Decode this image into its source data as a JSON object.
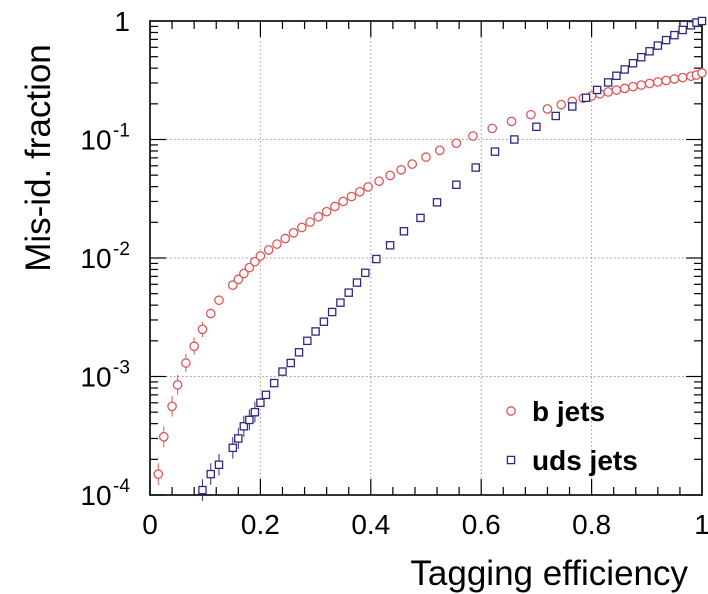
{
  "chart_data": {
    "type": "scatter",
    "title": "",
    "xlabel": "Tagging efficiency",
    "ylabel": "Mis-id. fraction",
    "xlim": [
      0,
      1
    ],
    "ylim": [
      0.0001,
      1
    ],
    "y_scale": "log",
    "grid": true,
    "legend_position": "bottom-right",
    "x_ticks": [
      {
        "value": 0,
        "label": "0"
      },
      {
        "value": 0.2,
        "label": "0.2"
      },
      {
        "value": 0.4,
        "label": "0.4"
      },
      {
        "value": 0.6,
        "label": "0.6"
      },
      {
        "value": 0.8,
        "label": "0.8"
      },
      {
        "value": 1,
        "label": "1"
      }
    ],
    "y_ticks": [
      {
        "value": 0.0001,
        "base": "10",
        "exp": "-4"
      },
      {
        "value": 0.001,
        "base": "10",
        "exp": "-3"
      },
      {
        "value": 0.01,
        "base": "10",
        "exp": "-2"
      },
      {
        "value": 0.1,
        "base": "10",
        "exp": "-1"
      },
      {
        "value": 1,
        "base": "1",
        "exp": ""
      }
    ],
    "series": [
      {
        "name": "b jets",
        "marker": "open-circle",
        "color": "#e05555",
        "x": [
          0.015,
          0.025,
          0.04,
          0.05,
          0.065,
          0.08,
          0.095,
          0.11,
          0.125,
          0.15,
          0.16,
          0.17,
          0.18,
          0.19,
          0.2,
          0.215,
          0.23,
          0.245,
          0.26,
          0.275,
          0.29,
          0.305,
          0.32,
          0.335,
          0.35,
          0.365,
          0.38,
          0.395,
          0.415,
          0.435,
          0.455,
          0.475,
          0.5,
          0.525,
          0.555,
          0.585,
          0.62,
          0.655,
          0.69,
          0.72,
          0.745,
          0.765,
          0.785,
          0.8,
          0.815,
          0.83,
          0.845,
          0.86,
          0.875,
          0.89,
          0.905,
          0.92,
          0.935,
          0.95,
          0.965,
          0.98,
          0.99,
          1.0
        ],
        "y": [
          0.00015,
          0.00031,
          0.00056,
          0.00085,
          0.0013,
          0.0018,
          0.0025,
          0.0034,
          0.0044,
          0.0059,
          0.0066,
          0.0074,
          0.0083,
          0.0093,
          0.0104,
          0.0117,
          0.0131,
          0.0146,
          0.0163,
          0.0181,
          0.0201,
          0.0223,
          0.0246,
          0.0272,
          0.03,
          0.033,
          0.0362,
          0.0398,
          0.0445,
          0.0497,
          0.0555,
          0.062,
          0.071,
          0.081,
          0.093,
          0.107,
          0.124,
          0.142,
          0.162,
          0.181,
          0.197,
          0.21,
          0.223,
          0.233,
          0.243,
          0.252,
          0.261,
          0.27,
          0.279,
          0.288,
          0.297,
          0.306,
          0.315,
          0.324,
          0.333,
          0.342,
          0.35,
          0.365
        ]
      },
      {
        "name": "uds jets",
        "marker": "open-square",
        "color": "#2b2b80",
        "x": [
          0.095,
          0.11,
          0.125,
          0.15,
          0.16,
          0.17,
          0.18,
          0.19,
          0.2,
          0.21,
          0.225,
          0.24,
          0.255,
          0.27,
          0.285,
          0.3,
          0.315,
          0.33,
          0.345,
          0.36,
          0.375,
          0.39,
          0.41,
          0.435,
          0.46,
          0.49,
          0.52,
          0.555,
          0.59,
          0.625,
          0.66,
          0.7,
          0.735,
          0.765,
          0.79,
          0.81,
          0.83,
          0.845,
          0.86,
          0.875,
          0.89,
          0.905,
          0.92,
          0.935,
          0.95,
          0.965,
          0.98,
          0.99,
          1.0
        ],
        "y": [
          0.00011,
          0.00015,
          0.00018,
          0.00025,
          0.0003,
          0.00038,
          0.00043,
          0.0005,
          0.0006,
          0.0007,
          0.00088,
          0.0011,
          0.0013,
          0.0016,
          0.002,
          0.0024,
          0.0029,
          0.0035,
          0.0042,
          0.0051,
          0.0062,
          0.0075,
          0.0098,
          0.0128,
          0.0168,
          0.0218,
          0.0295,
          0.0415,
          0.058,
          0.079,
          0.1,
          0.128,
          0.158,
          0.19,
          0.225,
          0.262,
          0.303,
          0.345,
          0.39,
          0.44,
          0.495,
          0.555,
          0.62,
          0.69,
          0.76,
          0.84,
          0.92,
          0.97,
          1.0
        ]
      }
    ]
  }
}
